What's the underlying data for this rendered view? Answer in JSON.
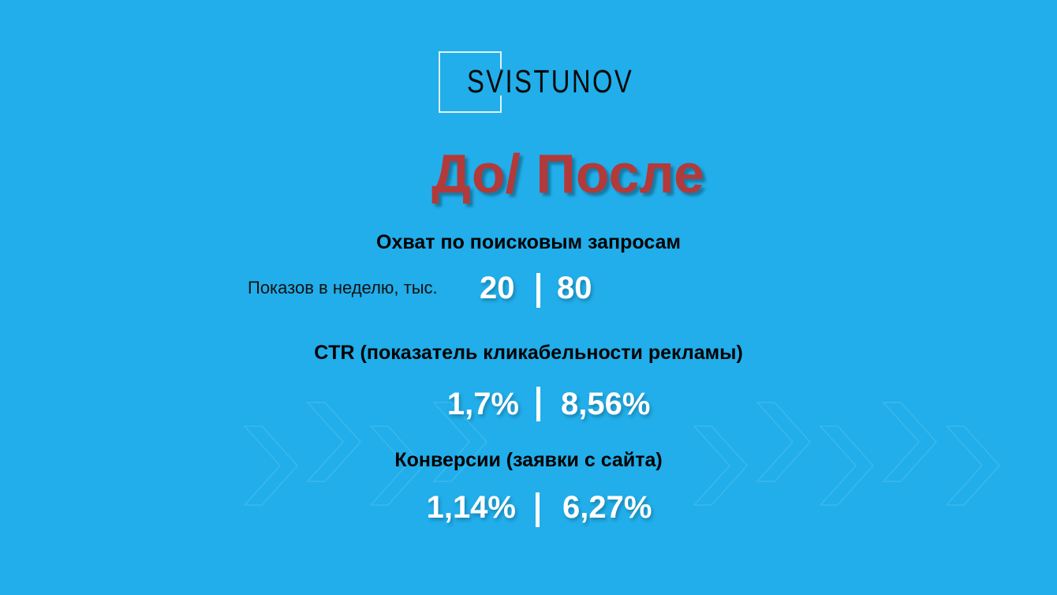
{
  "logo": {
    "text": "SVISTUNOV"
  },
  "title": "До/ После",
  "metrics": [
    {
      "heading": "Охват по поисковым запросам",
      "label": "Показов в неделю, тыс.",
      "before": "20",
      "after": "80"
    },
    {
      "heading": "CTR (показатель кликабельности рекламы)",
      "before": "1,7%",
      "after": "8,56%"
    },
    {
      "heading": "Конверсии (заявки с сайта)",
      "before": "1,14%",
      "after": "6,27%"
    }
  ],
  "colors": {
    "background": "#21aeea",
    "title": "#b23a3a",
    "values": "#ffffff"
  }
}
